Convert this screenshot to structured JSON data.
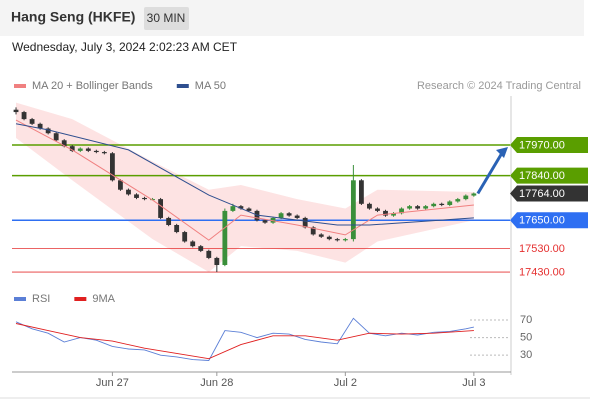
{
  "header": {
    "title": "Hang Seng (HKFE)",
    "interval": "30 MIN",
    "timestamp": "Wednesday, July 3, 2024 2:02:23 AM CET"
  },
  "chart_data": [
    {
      "type": "candlestick",
      "source": "Research © 2024 Trading Central",
      "xlim": [
        -0.5,
        61.5
      ],
      "ylim": [
        17375,
        18174
      ],
      "candles": {
        "up_color": "#3a8f3a",
        "down_color": "#333333",
        "open": [
          18120,
          18110,
          18080,
          18060,
          18040,
          18020,
          17990,
          17965,
          17945,
          17955,
          17945,
          17940,
          17935,
          17820,
          17780,
          17760,
          17745,
          17740,
          17740,
          17660,
          17630,
          17600,
          17560,
          17540,
          17520,
          17490,
          17460,
          17690,
          17710,
          17700,
          17690,
          17650,
          17640,
          17660,
          17680,
          17670,
          17660,
          17620,
          17590,
          17580,
          17570,
          17565,
          17570,
          17820,
          17720,
          17700,
          17690,
          17670,
          17680,
          17700,
          17710,
          17700,
          17710,
          17720,
          17715,
          17730,
          17740,
          17755
        ],
        "high": [
          18130,
          18115,
          18085,
          18065,
          18045,
          18025,
          17995,
          17970,
          17960,
          17960,
          17950,
          17945,
          17940,
          17825,
          17785,
          17765,
          17750,
          17745,
          17745,
          17665,
          17635,
          17605,
          17565,
          17545,
          17525,
          17495,
          17700,
          17720,
          17715,
          17705,
          17695,
          17655,
          17665,
          17685,
          17685,
          17675,
          17665,
          17625,
          17595,
          17585,
          17575,
          17575,
          17885,
          17825,
          17725,
          17705,
          17695,
          17685,
          17705,
          17715,
          17715,
          17715,
          17725,
          17725,
          17735,
          17745,
          17760,
          17768
        ],
        "low": [
          18100,
          18075,
          18055,
          18035,
          18015,
          17985,
          17960,
          17940,
          17940,
          17940,
          17935,
          17930,
          17815,
          17775,
          17755,
          17740,
          17735,
          17735,
          17655,
          17625,
          17595,
          17555,
          17535,
          17515,
          17485,
          17430,
          17455,
          17685,
          17695,
          17685,
          17645,
          17635,
          17635,
          17655,
          17665,
          17655,
          17615,
          17585,
          17575,
          17565,
          17560,
          17560,
          17560,
          17715,
          17695,
          17685,
          17665,
          17665,
          17675,
          17695,
          17695,
          17695,
          17705,
          17710,
          17710,
          17725,
          17735,
          17750
        ],
        "close": [
          18110,
          18080,
          18060,
          18040,
          18020,
          17990,
          17965,
          17945,
          17955,
          17945,
          17940,
          17935,
          17820,
          17780,
          17760,
          17745,
          17740,
          17740,
          17660,
          17630,
          17600,
          17560,
          17540,
          17520,
          17490,
          17460,
          17690,
          17710,
          17700,
          17690,
          17650,
          17640,
          17660,
          17680,
          17670,
          17660,
          17620,
          17590,
          17580,
          17570,
          17565,
          17570,
          17820,
          17720,
          17700,
          17690,
          17670,
          17680,
          17700,
          17710,
          17700,
          17710,
          17720,
          17715,
          17730,
          17740,
          17755,
          17764
        ]
      },
      "band": {
        "color": "#fde3e3",
        "x": [
          0,
          7,
          17,
          24,
          28,
          35,
          41,
          45,
          57
        ],
        "upper": [
          18150,
          18080,
          17900,
          17780,
          17800,
          17740,
          17700,
          17780,
          17770
        ],
        "lower": [
          18000,
          17820,
          17570,
          17430,
          17540,
          17520,
          17470,
          17560,
          17650
        ]
      },
      "series": [
        {
          "name": "MA 20 + Bollinger Bands",
          "color": "#f08080",
          "x": [
            0,
            7,
            17,
            24,
            28,
            35,
            41,
            45,
            57
          ],
          "values": [
            18076,
            17949,
            17736,
            17566,
            17672,
            17630,
            17588,
            17672,
            17715
          ]
        },
        {
          "name": "MA 50",
          "color": "#2f4f8f",
          "x": [
            0,
            4,
            14,
            24,
            30,
            40,
            44,
            57
          ],
          "values": [
            18060,
            18034,
            17949,
            17757,
            17672,
            17630,
            17630,
            17660
          ]
        }
      ],
      "levels": [
        {
          "value": 17970,
          "label": "17970.00",
          "color": "#5a9e00",
          "boxed": true
        },
        {
          "value": 17840,
          "label": "17840.00",
          "color": "#5a9e00",
          "boxed": true
        },
        {
          "value": 17764,
          "label": "17764.00",
          "color": "#333333",
          "boxed": true
        },
        {
          "value": 17650,
          "label": "17650.00",
          "color": "#2e6ff2",
          "boxed": true
        },
        {
          "value": 17530,
          "label": "17530.00",
          "color": "#e53030",
          "boxed": false
        },
        {
          "value": 17430,
          "label": "17430.00",
          "color": "#e53030",
          "boxed": false
        }
      ]
    },
    {
      "type": "line",
      "xlim": [
        -0.5,
        61.5
      ],
      "ylim": [
        12,
        78
      ],
      "yticks": [
        30,
        50,
        70
      ],
      "xticks": [
        {
          "value": 12,
          "label": "Jun 27"
        },
        {
          "value": 25,
          "label": "Jun 28"
        },
        {
          "value": 41,
          "label": "Jul 2"
        },
        {
          "value": 57,
          "label": "Jul 3"
        }
      ],
      "series": [
        {
          "name": "RSI",
          "color": "#5b7fd6",
          "x": [
            0,
            2,
            4,
            6,
            8,
            10,
            12,
            14,
            16,
            18,
            20,
            22,
            24,
            26,
            28,
            30,
            32,
            34,
            36,
            38,
            40,
            42,
            44,
            46,
            48,
            50,
            52,
            54,
            56,
            57
          ],
          "values": [
            68,
            60,
            55,
            45,
            50,
            47,
            40,
            37,
            36,
            30,
            28,
            25,
            24,
            58,
            56,
            50,
            55,
            54,
            48,
            45,
            43,
            72,
            55,
            52,
            55,
            53,
            56,
            57,
            60,
            62
          ]
        },
        {
          "name": "9MA",
          "color": "#e02020",
          "x": [
            0,
            4,
            8,
            12,
            16,
            20,
            24,
            28,
            32,
            36,
            40,
            44,
            48,
            52,
            57
          ],
          "values": [
            66,
            58,
            50,
            46,
            38,
            32,
            26,
            42,
            52,
            52,
            47,
            55,
            54,
            55,
            58
          ]
        }
      ]
    }
  ]
}
